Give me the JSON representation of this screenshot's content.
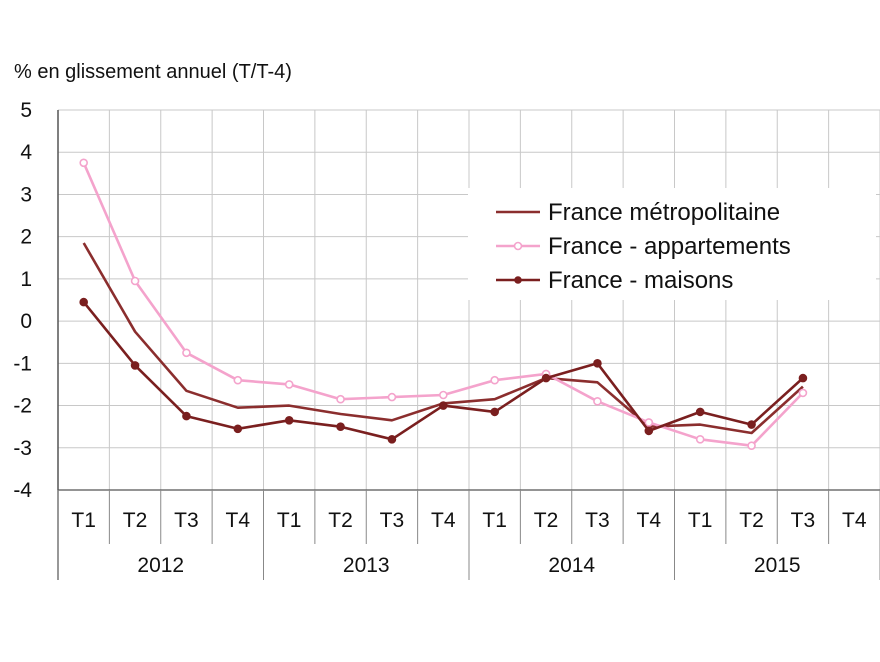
{
  "chart_data": {
    "type": "line",
    "title": "",
    "ylabel": "% en glissement annuel (T/T-4)",
    "xlabel": "",
    "ylim": [
      -4,
      5
    ],
    "yticks": [
      5,
      4,
      3,
      2,
      1,
      0,
      -1,
      -2,
      -3,
      -4
    ],
    "grid": true,
    "legend_position": "top-right",
    "categories": [
      "T1",
      "T2",
      "T3",
      "T4",
      "T1",
      "T2",
      "T3",
      "T4",
      "T1",
      "T2",
      "T3",
      "T4",
      "T1",
      "T2",
      "T3",
      "T4"
    ],
    "years": [
      "2012",
      "2013",
      "2014",
      "2015"
    ],
    "series": [
      {
        "name": "France métropolitaine",
        "color": "#8b2e2e",
        "marker": "none",
        "values": [
          1.85,
          -0.25,
          -1.65,
          -2.05,
          -2.0,
          -2.2,
          -2.35,
          -1.95,
          -1.85,
          -1.35,
          -1.45,
          -2.5,
          -2.45,
          -2.65,
          -1.55,
          null
        ]
      },
      {
        "name": "France - appartements",
        "color": "#f4a3cc",
        "marker": "open-circle",
        "values": [
          3.75,
          0.95,
          -0.75,
          -1.4,
          -1.5,
          -1.85,
          -1.8,
          -1.75,
          -1.4,
          -1.25,
          -1.9,
          -2.4,
          -2.8,
          -2.95,
          -1.7,
          null
        ]
      },
      {
        "name": "France - maisons",
        "color": "#7a1f1f",
        "marker": "filled-circle",
        "values": [
          0.45,
          -1.05,
          -2.25,
          -2.55,
          -2.35,
          -2.5,
          -2.8,
          -2.0,
          -2.15,
          -1.35,
          -1.0,
          -2.6,
          -2.15,
          -2.45,
          -1.35,
          null
        ]
      }
    ]
  }
}
